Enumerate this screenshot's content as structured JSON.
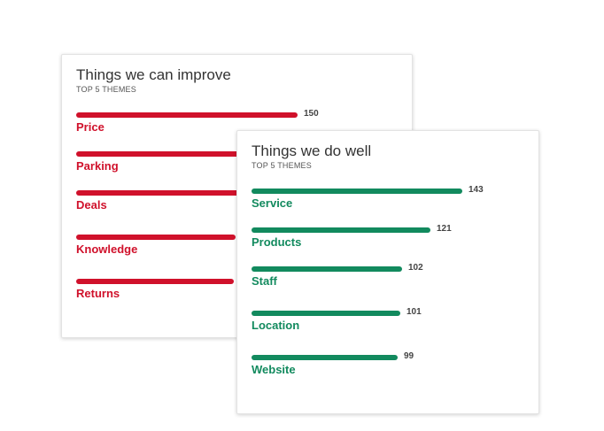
{
  "chart_data": [
    {
      "type": "bar",
      "orientation": "horizontal",
      "title": "Things we can improve",
      "subtitle": "TOP 5 THEMES",
      "color": "#d0112b",
      "categories": [
        "Price",
        "Parking",
        "Deals",
        "Knowledge",
        "Returns"
      ],
      "values": [
        150,
        124,
        112,
        108,
        107
      ]
    },
    {
      "type": "bar",
      "orientation": "horizontal",
      "title": "Things we do well",
      "subtitle": "TOP 5 THEMES",
      "color": "#128a5e",
      "categories": [
        "Service",
        "Products",
        "Staff",
        "Location",
        "Website"
      ],
      "values": [
        143,
        121,
        102,
        101,
        99
      ]
    }
  ]
}
